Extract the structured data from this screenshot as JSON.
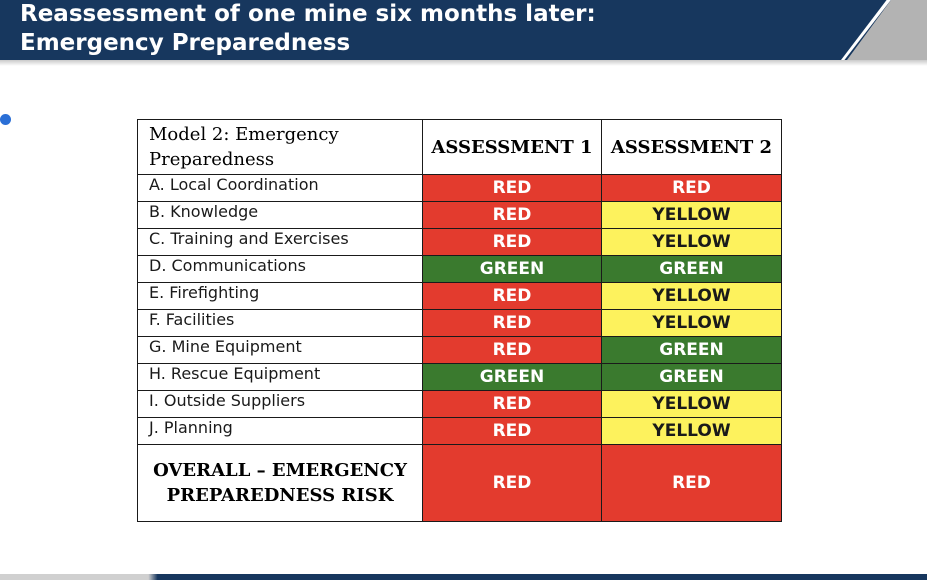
{
  "slide": {
    "title_line1": "Reassessment of one mine six months later:",
    "title_line2": "Emergency Preparedness"
  },
  "table": {
    "header": {
      "model": "Model 2: Emergency Preparedness",
      "assessment1": "ASSESSMENT 1",
      "assessment2": "ASSESSMENT 2"
    },
    "rows": [
      {
        "label": "A.  Local Coordination",
        "a1": "RED",
        "a2": "RED"
      },
      {
        "label": "B.  Knowledge",
        "a1": "RED",
        "a2": "YELLOW"
      },
      {
        "label": "C. Training and Exercises",
        "a1": "RED",
        "a2": "YELLOW"
      },
      {
        "label": "D. Communications",
        "a1": "GREEN",
        "a2": "GREEN"
      },
      {
        "label": "E.  Firefighting",
        "a1": "RED",
        "a2": "YELLOW"
      },
      {
        "label": "F.  Facilities",
        "a1": "RED",
        "a2": "YELLOW"
      },
      {
        "label": "G.  Mine Equipment",
        "a1": "RED",
        "a2": "GREEN"
      },
      {
        "label": "H.  Rescue Equipment",
        "a1": "GREEN",
        "a2": "GREEN"
      },
      {
        "label": "I.  Outside Suppliers",
        "a1": "RED",
        "a2": "YELLOW"
      },
      {
        "label": "J.  Planning",
        "a1": "RED",
        "a2": "YELLOW"
      }
    ],
    "overall": {
      "label": "OVERALL – EMERGENCY PREPAREDNESS RISK",
      "a1": "RED",
      "a2": "RED"
    }
  },
  "colors": {
    "header_bg": "#17375e",
    "red": "#e33b2e",
    "yellow": "#fdf25d",
    "green": "#3a7a2e",
    "bullet": "#2a6fd6"
  }
}
